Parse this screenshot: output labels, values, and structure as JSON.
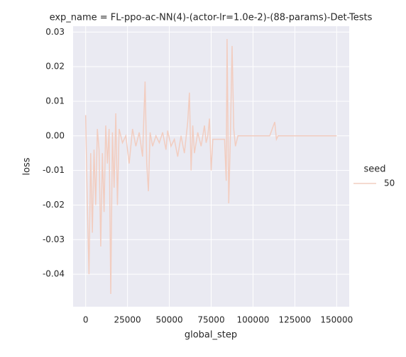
{
  "chart_data": {
    "type": "line",
    "title": "exp_name = FL-ppo-ac-NN(4)-(actor-lr=1.0e-2)-(88-params)-Det-Tests",
    "x_label": "global_step",
    "y_label": "loss",
    "x": [
      0,
      1000,
      2000,
      3000,
      4000,
      5000,
      6000,
      7000,
      8000,
      9000,
      10000,
      11000,
      12000,
      13000,
      14000,
      15000,
      16000,
      17000,
      18000,
      19000,
      20000,
      22000,
      24000,
      26000,
      28000,
      30000,
      32000,
      34000,
      35500,
      36500,
      37500,
      38500,
      40000,
      42000,
      44000,
      46000,
      48000,
      49000,
      51000,
      53000,
      55000,
      57000,
      59000,
      61000,
      62000,
      63000,
      64000,
      65000,
      67000,
      69000,
      71000,
      72000,
      73000,
      74000,
      75000,
      76000,
      80000,
      83000,
      84000,
      84500,
      85500,
      86500,
      87500,
      88500,
      89500,
      91000,
      95000,
      100000,
      110000,
      113000,
      114000,
      115000,
      150000
    ],
    "series": [
      {
        "name": "50",
        "color": "#f2cdc0",
        "values": [
          0.006,
          -0.02,
          -0.04,
          -0.005,
          -0.028,
          -0.004,
          -0.02,
          0.002,
          -0.004,
          -0.032,
          -0.005,
          -0.022,
          0.003,
          -0.008,
          0.002,
          -0.0457,
          0.001,
          -0.015,
          0.0065,
          -0.02,
          0.002,
          -0.002,
          0.0,
          -0.008,
          0.002,
          -0.003,
          0.001,
          -0.006,
          0.0157,
          -0.008,
          -0.016,
          0.001,
          -0.003,
          0.0,
          -0.002,
          0.001,
          -0.004,
          0.0015,
          -0.003,
          -0.001,
          -0.006,
          0.0,
          -0.005,
          0.004,
          0.0125,
          -0.01,
          0.003,
          -0.005,
          0.001,
          -0.003,
          0.003,
          -0.002,
          0.0,
          0.005,
          -0.01,
          -0.001,
          -0.001,
          -0.001,
          -0.013,
          0.028,
          -0.0195,
          0.0,
          0.026,
          0.002,
          -0.003,
          0.0,
          0.0,
          0.0,
          0.0,
          0.004,
          -0.001,
          0.0,
          0.0
        ]
      }
    ],
    "legend_title": "seed",
    "xlim": [
      -7500,
      157500
    ],
    "xticks": [
      0,
      25000,
      50000,
      75000,
      100000,
      125000,
      150000
    ],
    "ylim": [
      -0.0494,
      0.0317
    ],
    "yticks": [
      0.03,
      0.02,
      0.01,
      {
        "value": 0,
        "label": "0.00"
      },
      -0.01,
      -0.02,
      -0.03,
      -0.04
    ],
    "grid": true
  }
}
